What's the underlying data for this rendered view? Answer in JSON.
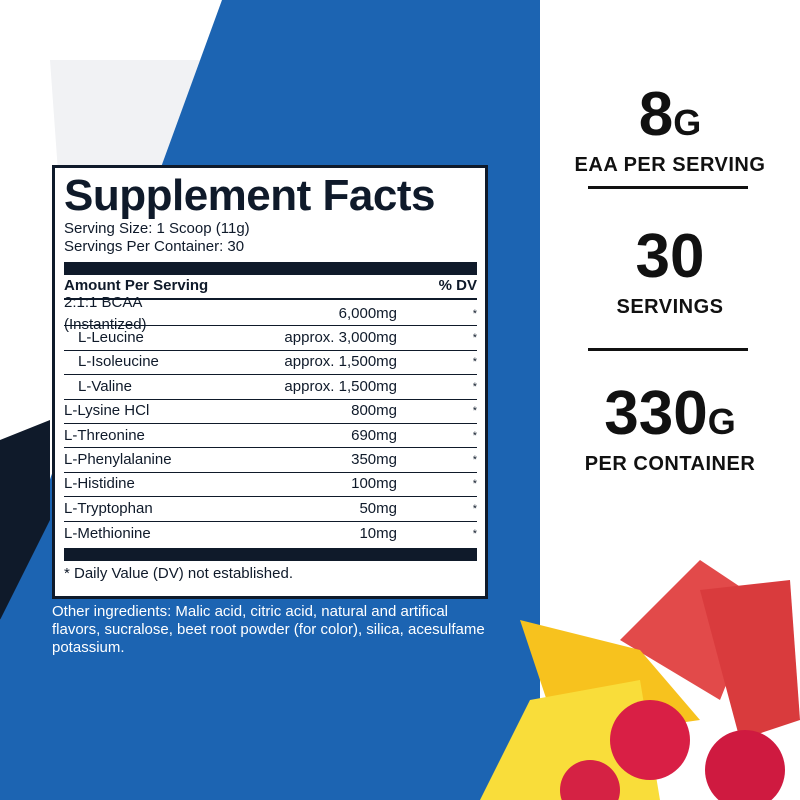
{
  "colors": {
    "blue": "#1c64b2",
    "navy": "#0f1a2a"
  },
  "facts": {
    "title": "Supplement Facts",
    "serving_size": "Serving Size: 1 Scoop (11g)",
    "servings": "Servings Per Container: 30",
    "header_amount": "Amount Per Serving",
    "header_dv": "% DV",
    "rows": [
      {
        "name": "2:1:1 BCAA (Instantized)",
        "amount": "6,000mg",
        "dv": "*"
      },
      {
        "name": "L-Leucine",
        "amount": "approx. 3,000mg",
        "dv": "*"
      },
      {
        "name": "L-Isoleucine",
        "amount": "approx. 1,500mg",
        "dv": "*"
      },
      {
        "name": "L-Valine",
        "amount": "approx. 1,500mg",
        "dv": "*"
      },
      {
        "name": "L-Lysine HCl",
        "amount": "800mg",
        "dv": "*"
      },
      {
        "name": "L-Threonine",
        "amount": "690mg",
        "dv": "*"
      },
      {
        "name": "L-Phenylalanine",
        "amount": "350mg",
        "dv": "*"
      },
      {
        "name": "L-Histidine",
        "amount": "100mg",
        "dv": "*"
      },
      {
        "name": "L-Tryptophan",
        "amount": "50mg",
        "dv": "*"
      },
      {
        "name": "L-Methionine",
        "amount": "10mg",
        "dv": "*"
      }
    ],
    "footnote": "* Daily Value (DV) not established."
  },
  "other_ingredients": "Other ingredients: Malic acid, citric acid, natural and artifical flavors, sucralose, beet root powder (for color), silica, acesulfame potassium.",
  "stats": [
    {
      "value": "8",
      "unit": "G",
      "label": "EAA PER SERVING"
    },
    {
      "value": "30",
      "unit": "",
      "label": "SERVINGS"
    },
    {
      "value": "330",
      "unit": "G",
      "label": "PER CONTAINER"
    }
  ]
}
